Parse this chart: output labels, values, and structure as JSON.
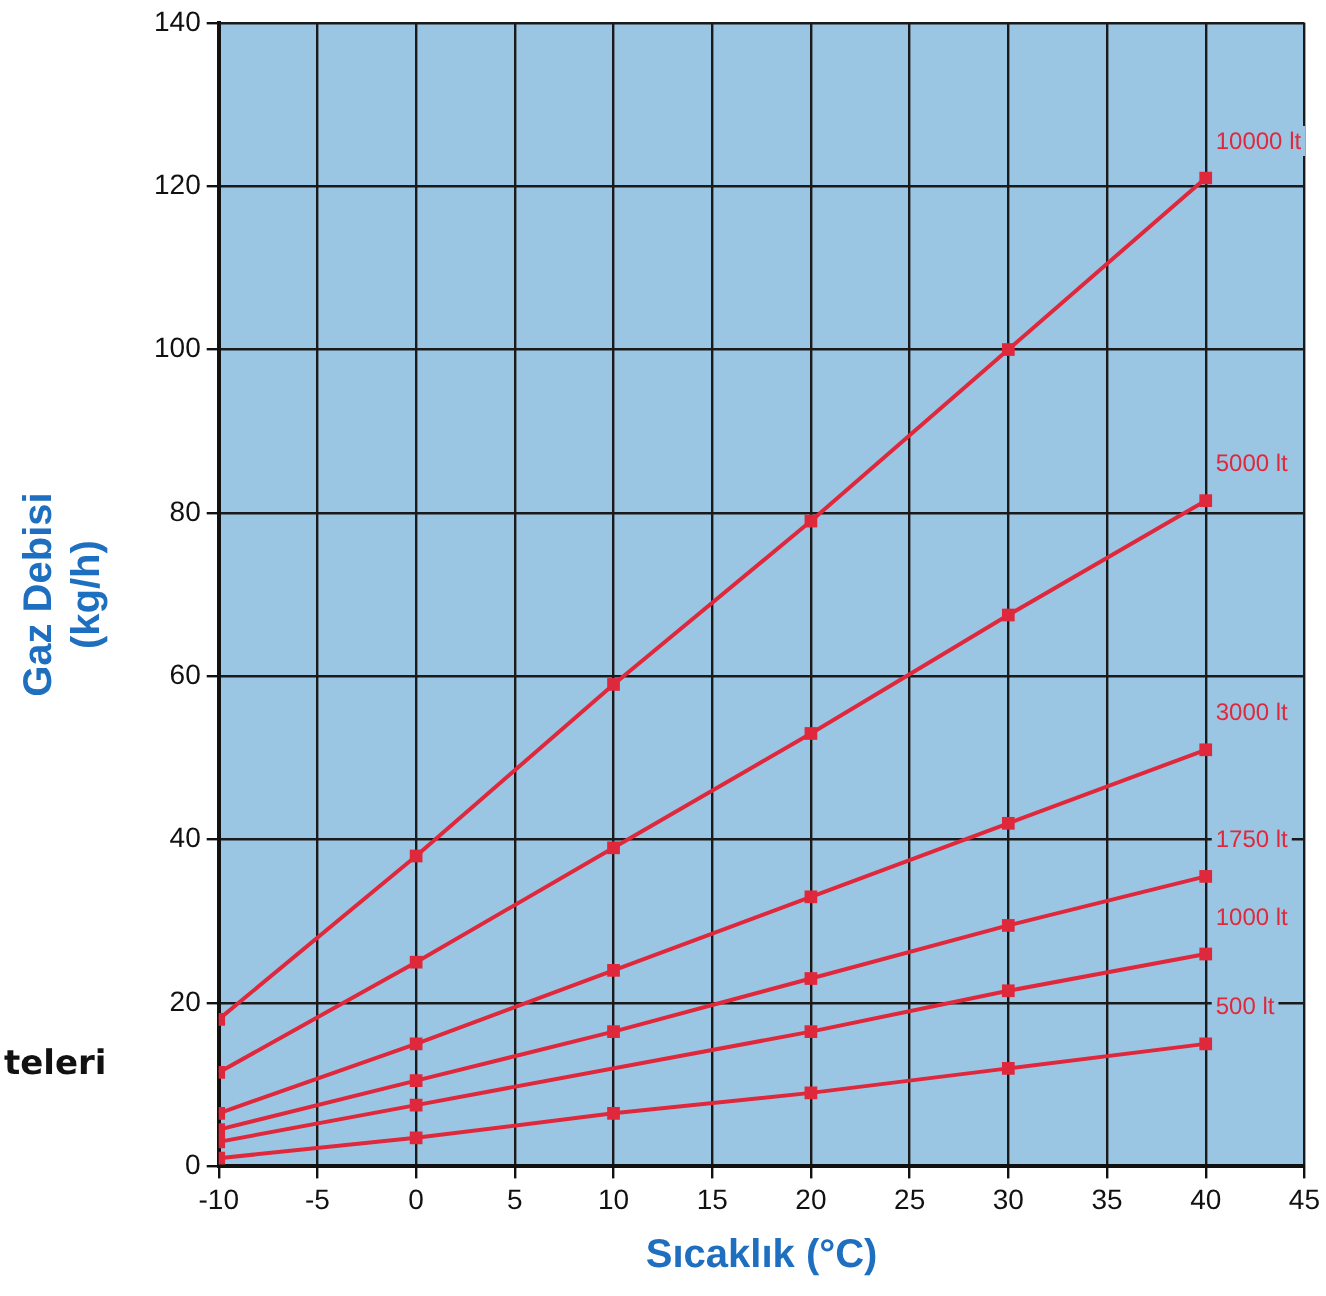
{
  "chart_data": {
    "type": "line",
    "xlabel": "Sıcaklık (°C)",
    "ylabel": "Gaz Debisi\n(kg/h)",
    "x": [
      -10,
      0,
      10,
      20,
      30,
      40
    ],
    "series": [
      {
        "name": "10000 lt",
        "color": "#e0283c",
        "values": [
          18,
          38,
          59,
          79,
          100,
          121
        ]
      },
      {
        "name": "5000 lt",
        "color": "#e0283c",
        "values": [
          11.5,
          25,
          39,
          53,
          67.5,
          81.5
        ]
      },
      {
        "name": "3000 lt",
        "color": "#e0283c",
        "values": [
          6.5,
          15,
          24,
          33,
          42,
          51
        ]
      },
      {
        "name": "1750 lt",
        "color": "#e0283c",
        "values": [
          4.5,
          10.5,
          16.5,
          23,
          29.5,
          35.5
        ]
      },
      {
        "name": "1000 lt",
        "color": "#e0283c",
        "values": [
          3,
          7.5,
          null,
          16.5,
          21.5,
          26
        ]
      },
      {
        "name": "500 lt",
        "color": "#e0283c",
        "values": [
          1,
          3.5,
          6.5,
          9,
          12,
          15
        ]
      }
    ],
    "xlim": [
      -10,
      45
    ],
    "xticks": [
      -10,
      -5,
      0,
      5,
      10,
      15,
      20,
      25,
      30,
      35,
      40,
      45
    ],
    "ylim": [
      0,
      140
    ],
    "yticks": [
      0,
      20,
      40,
      60,
      80,
      100,
      120,
      140
    ],
    "grid": true,
    "legend": false,
    "marker": "square",
    "line_style": "solid",
    "annotations": [
      "teleri"
    ]
  }
}
